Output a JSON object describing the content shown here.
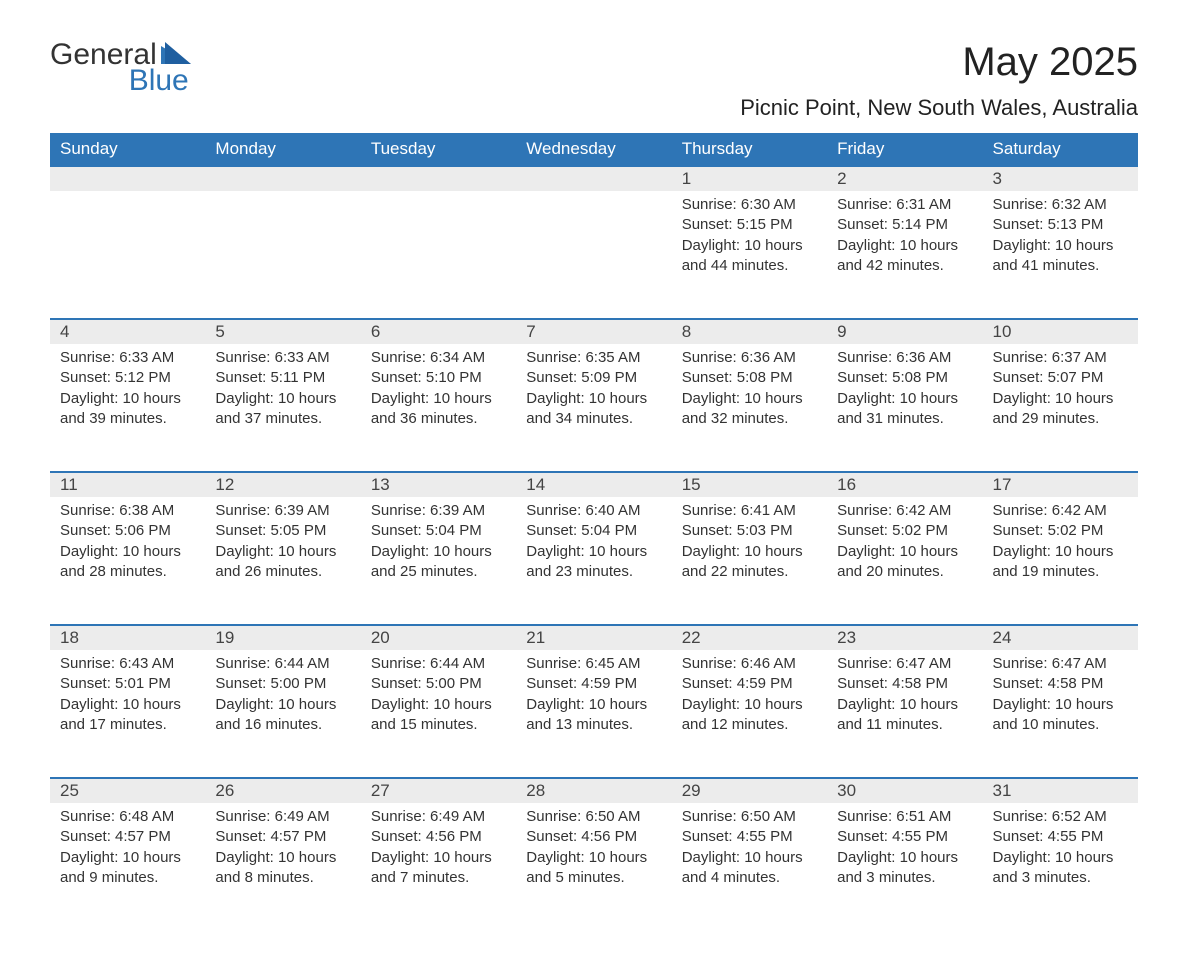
{
  "logo": {
    "text_general": "General",
    "text_blue": "Blue",
    "accent_color": "#2e75b6"
  },
  "title": "May 2025",
  "location": "Picnic Point, New South Wales, Australia",
  "colors": {
    "header_bg": "#2e75b6",
    "header_text": "#ffffff",
    "daynum_bg": "#ececec",
    "row_border": "#2e75b6",
    "body_text": "#333333",
    "background": "#ffffff"
  },
  "typography": {
    "title_fontsize": 40,
    "location_fontsize": 22,
    "weekday_fontsize": 17,
    "daynum_fontsize": 17,
    "cell_fontsize": 15
  },
  "weekdays": [
    "Sunday",
    "Monday",
    "Tuesday",
    "Wednesday",
    "Thursday",
    "Friday",
    "Saturday"
  ],
  "weeks": [
    [
      null,
      null,
      null,
      null,
      {
        "n": "1",
        "sunrise": "Sunrise: 6:30 AM",
        "sunset": "Sunset: 5:15 PM",
        "daylight": "Daylight: 10 hours and 44 minutes."
      },
      {
        "n": "2",
        "sunrise": "Sunrise: 6:31 AM",
        "sunset": "Sunset: 5:14 PM",
        "daylight": "Daylight: 10 hours and 42 minutes."
      },
      {
        "n": "3",
        "sunrise": "Sunrise: 6:32 AM",
        "sunset": "Sunset: 5:13 PM",
        "daylight": "Daylight: 10 hours and 41 minutes."
      }
    ],
    [
      {
        "n": "4",
        "sunrise": "Sunrise: 6:33 AM",
        "sunset": "Sunset: 5:12 PM",
        "daylight": "Daylight: 10 hours and 39 minutes."
      },
      {
        "n": "5",
        "sunrise": "Sunrise: 6:33 AM",
        "sunset": "Sunset: 5:11 PM",
        "daylight": "Daylight: 10 hours and 37 minutes."
      },
      {
        "n": "6",
        "sunrise": "Sunrise: 6:34 AM",
        "sunset": "Sunset: 5:10 PM",
        "daylight": "Daylight: 10 hours and 36 minutes."
      },
      {
        "n": "7",
        "sunrise": "Sunrise: 6:35 AM",
        "sunset": "Sunset: 5:09 PM",
        "daylight": "Daylight: 10 hours and 34 minutes."
      },
      {
        "n": "8",
        "sunrise": "Sunrise: 6:36 AM",
        "sunset": "Sunset: 5:08 PM",
        "daylight": "Daylight: 10 hours and 32 minutes."
      },
      {
        "n": "9",
        "sunrise": "Sunrise: 6:36 AM",
        "sunset": "Sunset: 5:08 PM",
        "daylight": "Daylight: 10 hours and 31 minutes."
      },
      {
        "n": "10",
        "sunrise": "Sunrise: 6:37 AM",
        "sunset": "Sunset: 5:07 PM",
        "daylight": "Daylight: 10 hours and 29 minutes."
      }
    ],
    [
      {
        "n": "11",
        "sunrise": "Sunrise: 6:38 AM",
        "sunset": "Sunset: 5:06 PM",
        "daylight": "Daylight: 10 hours and 28 minutes."
      },
      {
        "n": "12",
        "sunrise": "Sunrise: 6:39 AM",
        "sunset": "Sunset: 5:05 PM",
        "daylight": "Daylight: 10 hours and 26 minutes."
      },
      {
        "n": "13",
        "sunrise": "Sunrise: 6:39 AM",
        "sunset": "Sunset: 5:04 PM",
        "daylight": "Daylight: 10 hours and 25 minutes."
      },
      {
        "n": "14",
        "sunrise": "Sunrise: 6:40 AM",
        "sunset": "Sunset: 5:04 PM",
        "daylight": "Daylight: 10 hours and 23 minutes."
      },
      {
        "n": "15",
        "sunrise": "Sunrise: 6:41 AM",
        "sunset": "Sunset: 5:03 PM",
        "daylight": "Daylight: 10 hours and 22 minutes."
      },
      {
        "n": "16",
        "sunrise": "Sunrise: 6:42 AM",
        "sunset": "Sunset: 5:02 PM",
        "daylight": "Daylight: 10 hours and 20 minutes."
      },
      {
        "n": "17",
        "sunrise": "Sunrise: 6:42 AM",
        "sunset": "Sunset: 5:02 PM",
        "daylight": "Daylight: 10 hours and 19 minutes."
      }
    ],
    [
      {
        "n": "18",
        "sunrise": "Sunrise: 6:43 AM",
        "sunset": "Sunset: 5:01 PM",
        "daylight": "Daylight: 10 hours and 17 minutes."
      },
      {
        "n": "19",
        "sunrise": "Sunrise: 6:44 AM",
        "sunset": "Sunset: 5:00 PM",
        "daylight": "Daylight: 10 hours and 16 minutes."
      },
      {
        "n": "20",
        "sunrise": "Sunrise: 6:44 AM",
        "sunset": "Sunset: 5:00 PM",
        "daylight": "Daylight: 10 hours and 15 minutes."
      },
      {
        "n": "21",
        "sunrise": "Sunrise: 6:45 AM",
        "sunset": "Sunset: 4:59 PM",
        "daylight": "Daylight: 10 hours and 13 minutes."
      },
      {
        "n": "22",
        "sunrise": "Sunrise: 6:46 AM",
        "sunset": "Sunset: 4:59 PM",
        "daylight": "Daylight: 10 hours and 12 minutes."
      },
      {
        "n": "23",
        "sunrise": "Sunrise: 6:47 AM",
        "sunset": "Sunset: 4:58 PM",
        "daylight": "Daylight: 10 hours and 11 minutes."
      },
      {
        "n": "24",
        "sunrise": "Sunrise: 6:47 AM",
        "sunset": "Sunset: 4:58 PM",
        "daylight": "Daylight: 10 hours and 10 minutes."
      }
    ],
    [
      {
        "n": "25",
        "sunrise": "Sunrise: 6:48 AM",
        "sunset": "Sunset: 4:57 PM",
        "daylight": "Daylight: 10 hours and 9 minutes."
      },
      {
        "n": "26",
        "sunrise": "Sunrise: 6:49 AM",
        "sunset": "Sunset: 4:57 PM",
        "daylight": "Daylight: 10 hours and 8 minutes."
      },
      {
        "n": "27",
        "sunrise": "Sunrise: 6:49 AM",
        "sunset": "Sunset: 4:56 PM",
        "daylight": "Daylight: 10 hours and 7 minutes."
      },
      {
        "n": "28",
        "sunrise": "Sunrise: 6:50 AM",
        "sunset": "Sunset: 4:56 PM",
        "daylight": "Daylight: 10 hours and 5 minutes."
      },
      {
        "n": "29",
        "sunrise": "Sunrise: 6:50 AM",
        "sunset": "Sunset: 4:55 PM",
        "daylight": "Daylight: 10 hours and 4 minutes."
      },
      {
        "n": "30",
        "sunrise": "Sunrise: 6:51 AM",
        "sunset": "Sunset: 4:55 PM",
        "daylight": "Daylight: 10 hours and 3 minutes."
      },
      {
        "n": "31",
        "sunrise": "Sunrise: 6:52 AM",
        "sunset": "Sunset: 4:55 PM",
        "daylight": "Daylight: 10 hours and 3 minutes."
      }
    ]
  ]
}
